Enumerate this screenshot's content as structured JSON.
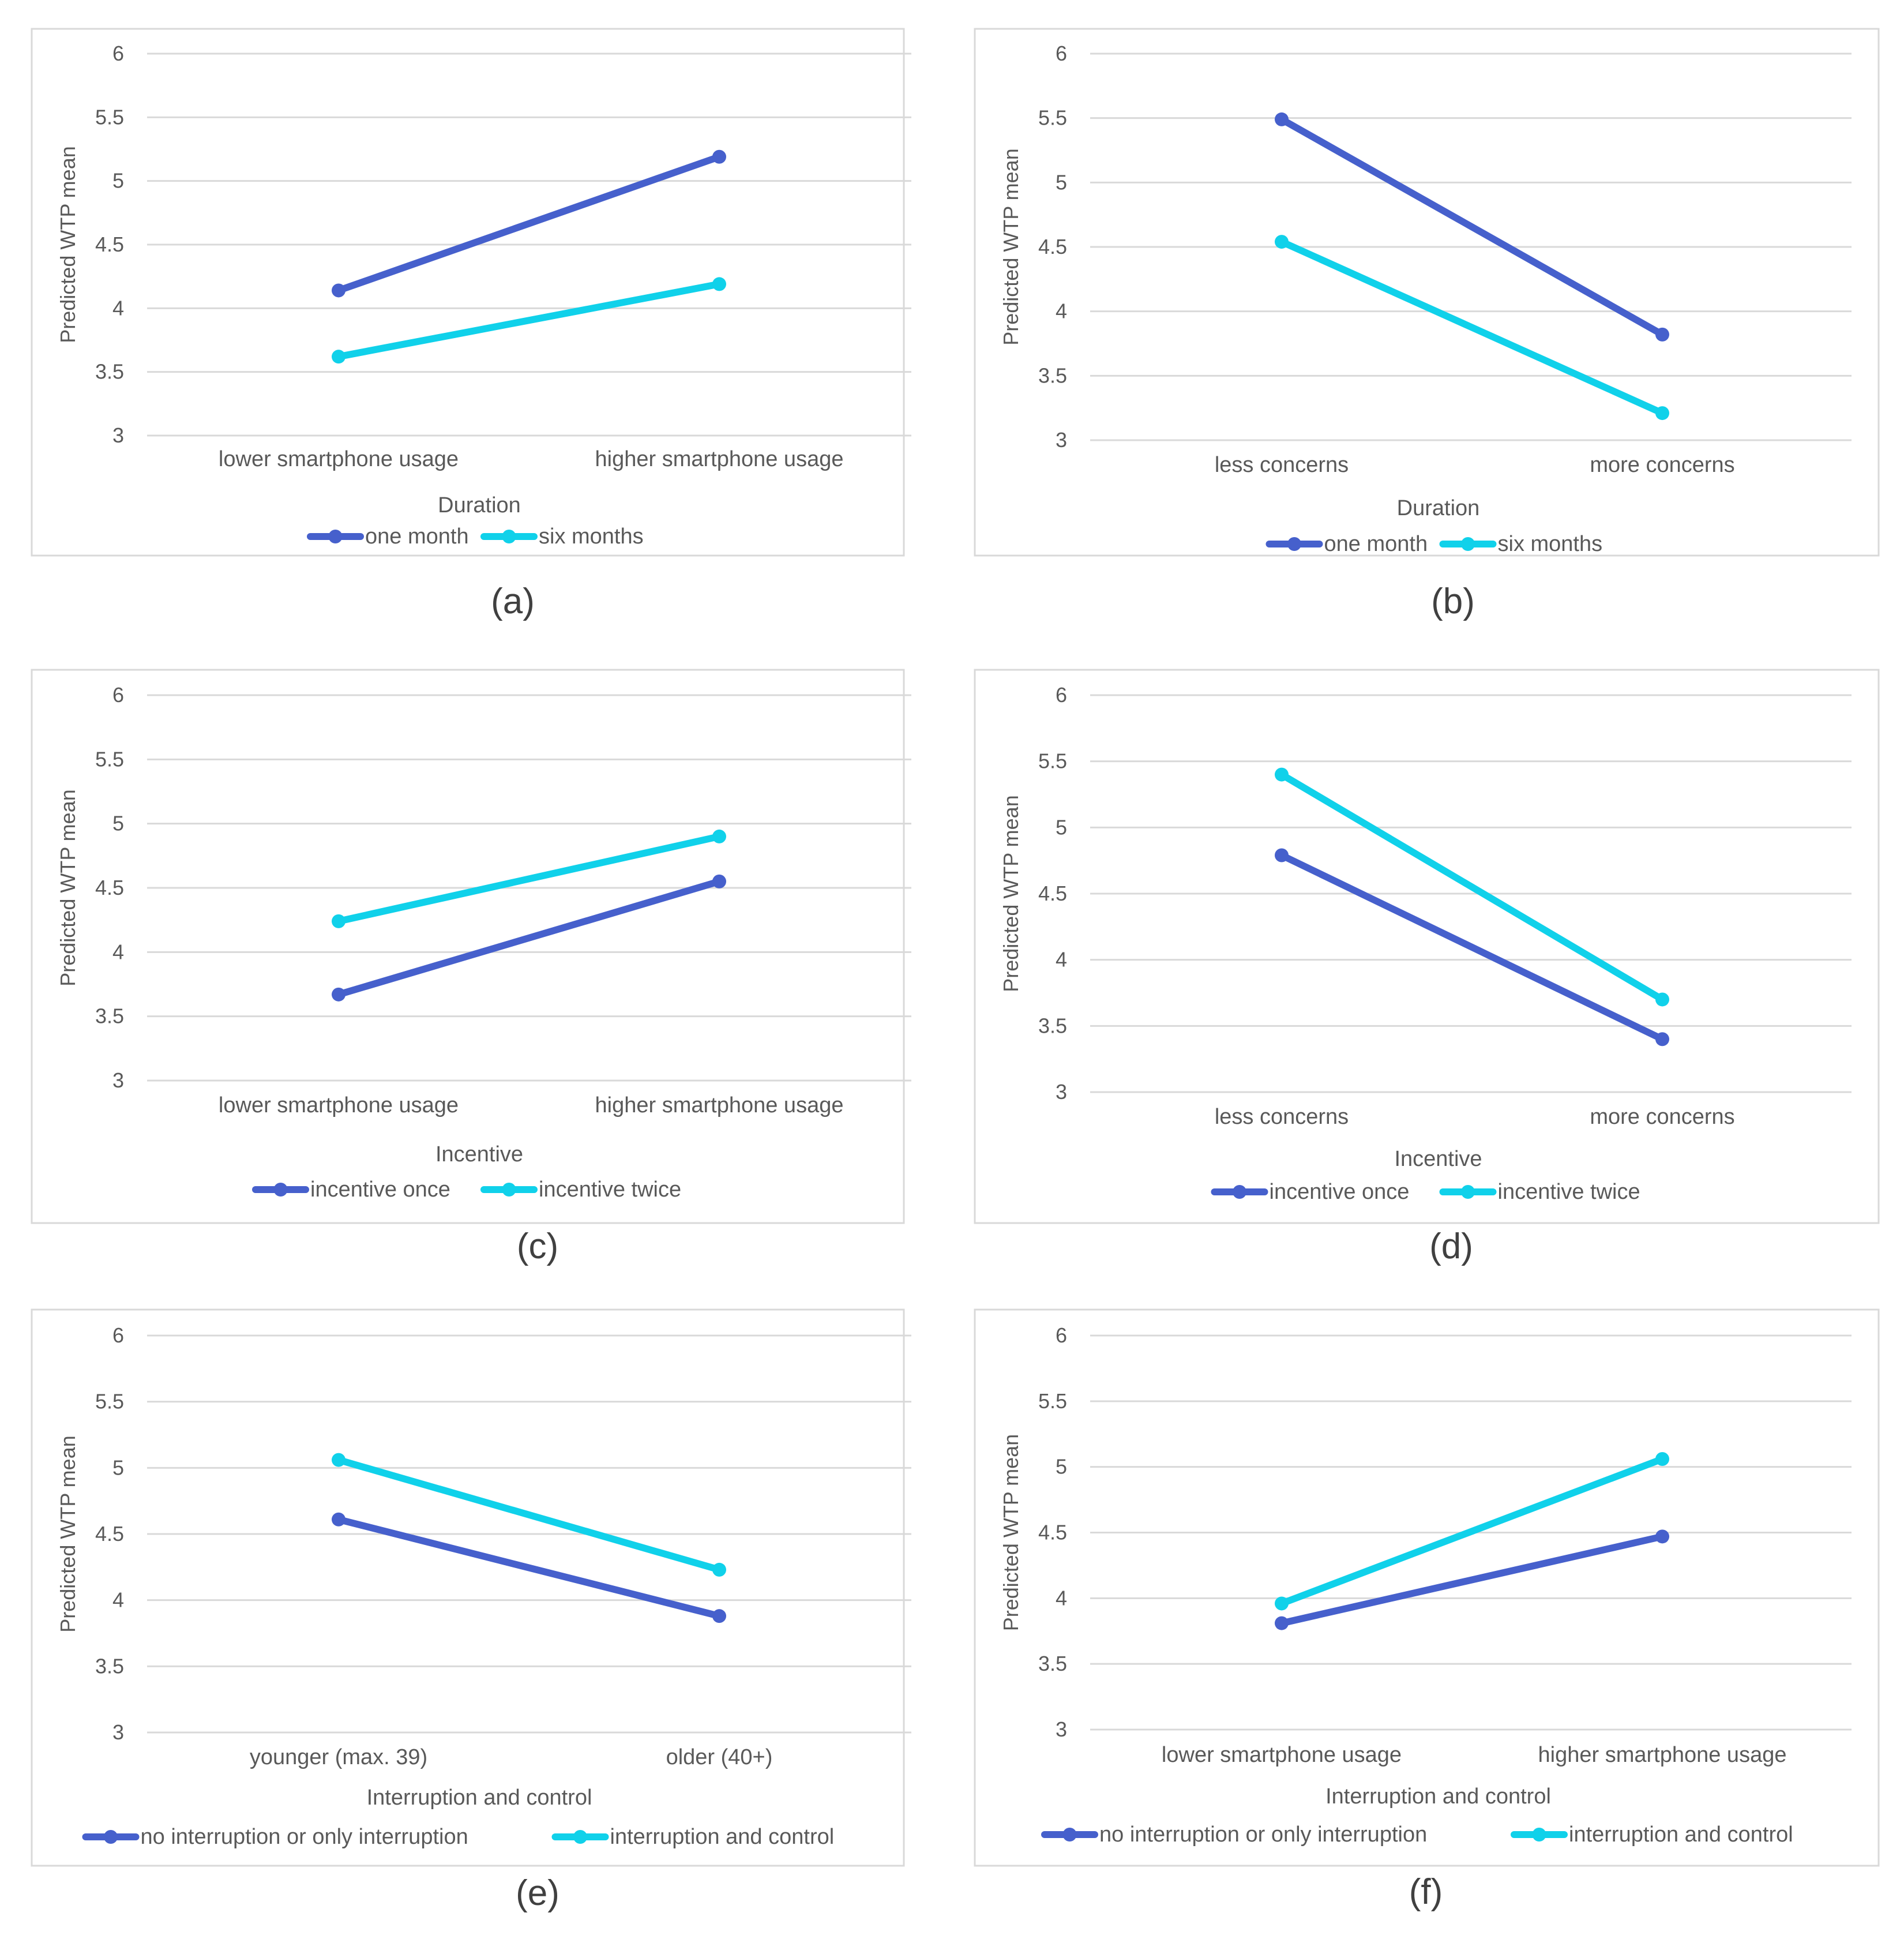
{
  "colors": {
    "series1": "#4660CC",
    "series2": "#10D1EA",
    "grid": "#D9D9D9",
    "frame": "#D9D9D9",
    "text": "#595959",
    "caption": "#404040"
  },
  "chart_data": [
    {
      "type": "line",
      "caption": "(a)",
      "ylabel": "Predicted WTP mean",
      "ylim": [
        3,
        6
      ],
      "yticks": [
        "3",
        "3.5",
        "4",
        "4.5",
        "5",
        "5.5",
        "6"
      ],
      "categories": [
        "lower smartphone usage",
        "higher smartphone usage"
      ],
      "legend_title": "Duration",
      "series": [
        {
          "name": "one month",
          "values": [
            4.14,
            5.19
          ]
        },
        {
          "name": "six months",
          "values": [
            3.62,
            4.19
          ]
        }
      ]
    },
    {
      "type": "line",
      "caption": "(b)",
      "ylabel": "Predicted WTP mean",
      "ylim": [
        3,
        6
      ],
      "yticks": [
        "3",
        "3.5",
        "4",
        "4.5",
        "5",
        "5.5",
        "6"
      ],
      "categories": [
        "less concerns",
        "more concerns"
      ],
      "legend_title": "Duration",
      "series": [
        {
          "name": "one month",
          "values": [
            5.49,
            3.82
          ]
        },
        {
          "name": "six months",
          "values": [
            4.54,
            3.21
          ]
        }
      ]
    },
    {
      "type": "line",
      "caption": "(c)",
      "ylabel": "Predicted WTP mean",
      "ylim": [
        3,
        6
      ],
      "yticks": [
        "3",
        "3.5",
        "4",
        "4.5",
        "5",
        "5.5",
        "6"
      ],
      "categories": [
        "lower smartphone usage",
        "higher smartphone usage"
      ],
      "legend_title": "Incentive",
      "series": [
        {
          "name": "incentive once",
          "values": [
            3.67,
            4.55
          ]
        },
        {
          "name": "incentive twice",
          "values": [
            4.24,
            4.9
          ]
        }
      ]
    },
    {
      "type": "line",
      "caption": "(d)",
      "ylabel": "Predicted WTP mean",
      "ylim": [
        3,
        6
      ],
      "yticks": [
        "3",
        "3.5",
        "4",
        "4.5",
        "5",
        "5.5",
        "6"
      ],
      "categories": [
        "less concerns",
        "more concerns"
      ],
      "legend_title": "Incentive",
      "series": [
        {
          "name": "incentive once",
          "values": [
            4.79,
            3.4
          ]
        },
        {
          "name": "incentive twice",
          "values": [
            5.4,
            3.7
          ]
        }
      ]
    },
    {
      "type": "line",
      "caption": "(e)",
      "ylabel": "Predicted WTP mean",
      "ylim": [
        3,
        6
      ],
      "yticks": [
        "3",
        "3.5",
        "4",
        "4.5",
        "5",
        "5.5",
        "6"
      ],
      "categories": [
        "younger (max. 39)",
        "older (40+)"
      ],
      "legend_title": "Interruption and control",
      "series": [
        {
          "name": "no interruption or only interruption",
          "values": [
            4.61,
            3.88
          ]
        },
        {
          "name": "interruption and control",
          "values": [
            5.06,
            4.23
          ]
        }
      ]
    },
    {
      "type": "line",
      "caption": "(f)",
      "ylabel": "Predicted WTP mean",
      "ylim": [
        3,
        6
      ],
      "yticks": [
        "3",
        "3.5",
        "4",
        "4.5",
        "5",
        "5.5",
        "6"
      ],
      "categories": [
        "lower smartphone usage",
        "higher smartphone usage"
      ],
      "legend_title": "Interruption and control",
      "series": [
        {
          "name": "no interruption or only interruption",
          "values": [
            3.81,
            4.47
          ]
        },
        {
          "name": "interruption and control",
          "values": [
            3.96,
            5.06
          ]
        }
      ]
    }
  ]
}
